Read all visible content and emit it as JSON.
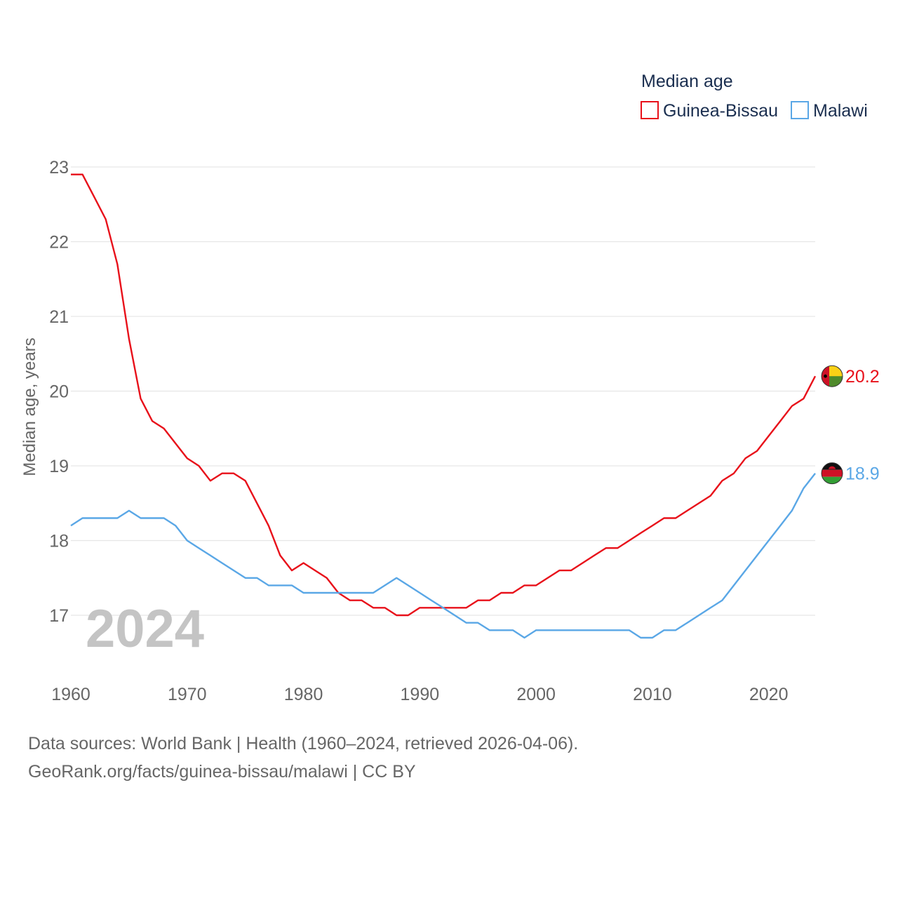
{
  "chart_data": {
    "type": "line",
    "title": "",
    "legend_title": "Median age",
    "ylabel": "Median age, years",
    "xlabel": "",
    "xlim": [
      1960,
      2024
    ],
    "ylim": [
      16.4,
      23.1
    ],
    "y_ticks": [
      17,
      18,
      19,
      20,
      21,
      22,
      23
    ],
    "x_ticks": [
      1960,
      1970,
      1980,
      1990,
      2000,
      2010,
      2020
    ],
    "year_label": "2024",
    "grid": true,
    "legend_position": "top-right",
    "x": [
      1960,
      1961,
      1962,
      1963,
      1964,
      1965,
      1966,
      1967,
      1968,
      1969,
      1970,
      1971,
      1972,
      1973,
      1974,
      1975,
      1976,
      1977,
      1978,
      1979,
      1980,
      1981,
      1982,
      1983,
      1984,
      1985,
      1986,
      1987,
      1988,
      1989,
      1990,
      1991,
      1992,
      1993,
      1994,
      1995,
      1996,
      1997,
      1998,
      1999,
      2000,
      2001,
      2002,
      2003,
      2004,
      2005,
      2006,
      2007,
      2008,
      2009,
      2010,
      2011,
      2012,
      2013,
      2014,
      2015,
      2016,
      2017,
      2018,
      2019,
      2020,
      2021,
      2022,
      2023,
      2024
    ],
    "series": [
      {
        "name": "Guinea-Bissau",
        "color": "#e8101a",
        "end_label": "20.2",
        "flag": "guinea-bissau-flag-icon",
        "values": [
          22.9,
          22.9,
          22.6,
          22.3,
          21.7,
          20.7,
          19.9,
          19.6,
          19.5,
          19.3,
          19.1,
          19.0,
          18.8,
          18.9,
          18.9,
          18.8,
          18.5,
          18.2,
          17.8,
          17.6,
          17.7,
          17.6,
          17.5,
          17.3,
          17.2,
          17.2,
          17.1,
          17.1,
          17.0,
          17.0,
          17.1,
          17.1,
          17.1,
          17.1,
          17.1,
          17.2,
          17.2,
          17.3,
          17.3,
          17.4,
          17.4,
          17.5,
          17.6,
          17.6,
          17.7,
          17.8,
          17.9,
          17.9,
          18.0,
          18.1,
          18.2,
          18.3,
          18.3,
          18.4,
          18.5,
          18.6,
          18.8,
          18.9,
          19.1,
          19.2,
          19.4,
          19.6,
          19.8,
          19.9,
          20.2
        ]
      },
      {
        "name": "Malawi",
        "color": "#5aa7e6",
        "end_label": "18.9",
        "flag": "malawi-flag-icon",
        "values": [
          18.2,
          18.3,
          18.3,
          18.3,
          18.3,
          18.4,
          18.3,
          18.3,
          18.3,
          18.2,
          18.0,
          17.9,
          17.8,
          17.7,
          17.6,
          17.5,
          17.5,
          17.4,
          17.4,
          17.4,
          17.3,
          17.3,
          17.3,
          17.3,
          17.3,
          17.3,
          17.3,
          17.4,
          17.5,
          17.4,
          17.3,
          17.2,
          17.1,
          17.0,
          16.9,
          16.9,
          16.8,
          16.8,
          16.8,
          16.7,
          16.8,
          16.8,
          16.8,
          16.8,
          16.8,
          16.8,
          16.8,
          16.8,
          16.8,
          16.7,
          16.7,
          16.8,
          16.8,
          16.9,
          17.0,
          17.1,
          17.2,
          17.4,
          17.6,
          17.8,
          18.0,
          18.2,
          18.4,
          18.7,
          18.9
        ]
      }
    ]
  },
  "footer": {
    "sources": "Data sources: World Bank | Health (1960–2024, retrieved 2026-04-06).",
    "credit": "GeoRank.org/facts/guinea-bissau/malawi | CC BY"
  }
}
